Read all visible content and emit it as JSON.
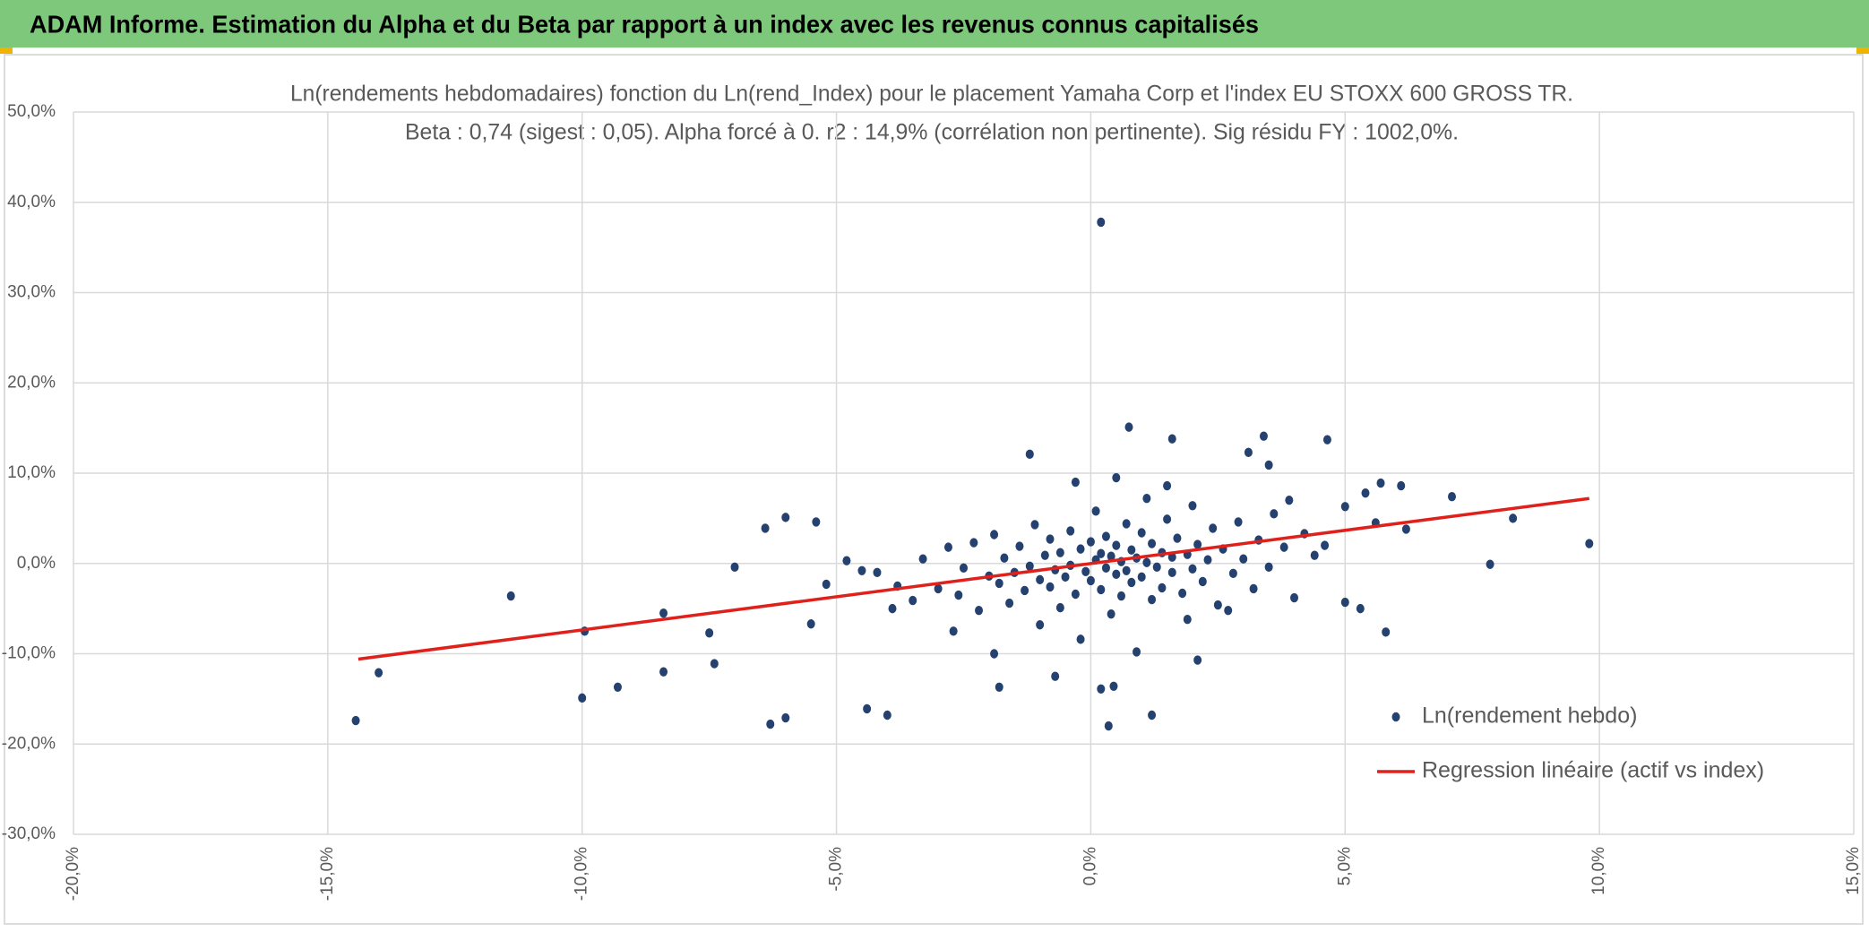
{
  "header": {
    "title": "ADAM Informe. Estimation du Alpha et du Beta par rapport à un index avec les revenus connus capitalisés"
  },
  "chart_data": {
    "type": "scatter",
    "title": "Ln(rendements hebdomadaires) fonction du Ln(rend_Index) pour le placement Yamaha Corp et l'index EU STOXX 600 GROSS TR.",
    "subtitle": "Beta : 0,74 (sigest : 0,05). Alpha forcé à 0. r2 : 14,9% (corrélation non pertinente). Sig résidu FY : 1002,0%.",
    "xlim": [
      -20,
      15
    ],
    "xticks": [
      {
        "value": -20,
        "label": "-20,0%"
      },
      {
        "value": -15,
        "label": "-15,0%"
      },
      {
        "value": -10,
        "label": "-10,0%"
      },
      {
        "value": -5,
        "label": "-5,0%"
      },
      {
        "value": 0,
        "label": "0,0%"
      },
      {
        "value": 5,
        "label": "5,0%"
      },
      {
        "value": 10,
        "label": "10,0%"
      },
      {
        "value": 15,
        "label": "15,0%"
      }
    ],
    "ylim": [
      -30,
      50
    ],
    "yticks": [
      {
        "value": -30,
        "label": "-30,0%"
      },
      {
        "value": -20,
        "label": "-20,0%"
      },
      {
        "value": -10,
        "label": "-10,0%"
      },
      {
        "value": 0,
        "label": "0,0%"
      },
      {
        "value": 10,
        "label": "10,0%"
      },
      {
        "value": 20,
        "label": "20,0%"
      },
      {
        "value": 30,
        "label": "30,0%"
      },
      {
        "value": 40,
        "label": "40,0%"
      },
      {
        "value": 50,
        "label": "50,0%"
      }
    ],
    "grid": true,
    "legend": "lower right",
    "series": [
      {
        "name": "Ln(rendement hebdo)",
        "type": "scatter",
        "color": "#24416f",
        "x": [
          -14.45,
          -14.0,
          -11.4,
          -9.95,
          -10.0,
          -9.3,
          -8.4,
          -8.4,
          -7.5,
          -7.4,
          -7.0,
          -6.3,
          -6.0,
          -6.4,
          -6.0,
          -5.4,
          -4.4,
          -4.0,
          0.2,
          0.75,
          -1.2,
          1.6,
          3.4,
          4.65,
          5.7,
          6.1,
          7.1,
          7.85,
          8.3,
          9.8,
          5.8,
          5.3,
          5.0,
          5.6,
          6.2,
          5.0,
          5.4,
          0.35,
          1.2,
          -1.8,
          0.45,
          0.2,
          2.1,
          -0.7,
          3.1,
          3.5,
          -4.5,
          -4.2,
          -3.8,
          -3.5,
          -3.3,
          -3.0,
          -2.8,
          -2.6,
          -2.5,
          -2.3,
          -2.2,
          -2.0,
          -1.9,
          -1.8,
          -1.7,
          -1.6,
          -1.5,
          -1.4,
          -1.3,
          -1.2,
          -1.1,
          -1.0,
          -1.0,
          -0.9,
          -0.8,
          -0.8,
          -0.7,
          -0.6,
          -0.6,
          -0.5,
          -0.4,
          -0.4,
          -0.3,
          -0.2,
          -0.2,
          -0.1,
          0.0,
          0.0,
          0.1,
          0.1,
          0.2,
          0.2,
          0.3,
          0.3,
          0.4,
          0.4,
          0.5,
          0.5,
          0.6,
          0.6,
          0.7,
          0.7,
          0.8,
          0.8,
          0.9,
          0.9,
          1.0,
          1.0,
          1.1,
          1.1,
          1.2,
          1.2,
          1.3,
          1.4,
          1.4,
          1.5,
          1.6,
          1.6,
          1.7,
          1.8,
          1.9,
          2.0,
          2.0,
          2.1,
          2.2,
          2.3,
          2.4,
          2.5,
          2.6,
          2.8,
          2.9,
          3.0,
          3.2,
          3.3,
          3.5,
          3.6,
          3.8,
          4.0,
          4.2,
          4.4,
          4.6,
          -5.2,
          -5.5,
          -4.8,
          -3.9,
          -2.7,
          -1.9,
          1.9,
          2.7,
          3.9,
          -0.3,
          0.5,
          1.5
        ],
        "values": [
          -17.4,
          -12.1,
          -3.6,
          -7.5,
          -14.9,
          -13.7,
          -12.0,
          -5.5,
          -7.7,
          -11.1,
          -0.4,
          -17.8,
          -17.1,
          3.9,
          5.1,
          4.6,
          -16.1,
          -16.8,
          37.8,
          15.1,
          12.1,
          13.8,
          14.1,
          13.7,
          8.9,
          8.6,
          7.4,
          -0.1,
          5.0,
          2.2,
          -7.6,
          -5.0,
          -4.3,
          4.5,
          3.8,
          6.3,
          7.8,
          -18.0,
          -16.8,
          -13.7,
          -13.6,
          -13.9,
          -10.7,
          -12.5,
          12.3,
          10.9,
          -0.8,
          -1.0,
          -2.5,
          -4.1,
          0.5,
          -2.8,
          1.8,
          -3.5,
          -0.5,
          2.3,
          -5.2,
          -1.4,
          3.2,
          -2.2,
          0.6,
          -4.4,
          -1.0,
          1.9,
          -3.0,
          -0.3,
          4.3,
          -6.8,
          -1.8,
          0.9,
          -2.6,
          2.7,
          -0.7,
          -4.9,
          1.2,
          -1.5,
          3.6,
          -0.2,
          -3.4,
          1.6,
          -8.4,
          -0.9,
          2.4,
          -1.9,
          0.4,
          5.8,
          -2.9,
          1.1,
          -0.5,
          3.0,
          -5.6,
          0.8,
          -1.2,
          2.0,
          -3.6,
          0.2,
          4.4,
          -0.8,
          1.5,
          -2.1,
          -9.8,
          0.6,
          3.4,
          -1.5,
          7.2,
          0.1,
          -4.0,
          2.2,
          -0.4,
          1.2,
          -2.7,
          4.9,
          -1.0,
          0.7,
          2.8,
          -3.3,
          1.0,
          -0.6,
          6.4,
          2.1,
          -2.0,
          0.4,
          3.9,
          -4.6,
          1.6,
          -1.1,
          4.6,
          0.5,
          -2.8,
          2.6,
          -0.4,
          5.5,
          1.8,
          -3.8,
          3.3,
          0.9,
          2.0,
          -2.3,
          -6.7,
          0.3,
          -5.0,
          -7.5,
          -10.0,
          -6.2,
          -5.2,
          7.0,
          9.0,
          9.5,
          8.6
        ]
      },
      {
        "name": "Regression linéaire (actif vs index)",
        "type": "line",
        "color": "#e0201b",
        "x": [
          -14.4,
          9.8
        ],
        "values": [
          -10.6,
          7.2
        ]
      }
    ]
  }
}
